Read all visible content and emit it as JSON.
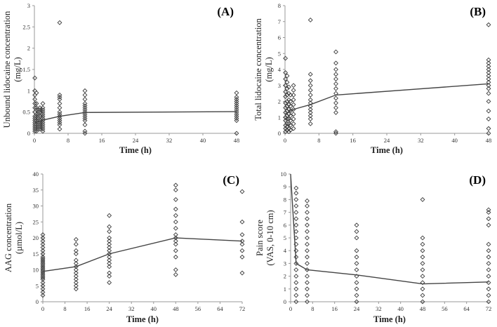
{
  "chart_data": [
    {
      "id": "A",
      "type": "scatter",
      "panel_label": "(A)",
      "xlabel": "Time (h)",
      "ylabel_lines": [
        "Unbound lidocaine concentration",
        "(mg/L)"
      ],
      "xlim": [
        0,
        48
      ],
      "ylim": [
        0,
        3
      ],
      "xticks": [
        0,
        8,
        16,
        24,
        32,
        40,
        48
      ],
      "yticks": [
        0,
        0.5,
        1,
        1.5,
        2,
        2.5,
        3
      ],
      "ytick_labels": [
        "0",
        "0.5",
        "1",
        "1.5",
        "2",
        "2.5",
        "3"
      ],
      "scatter_columns": [
        {
          "x": 0.1,
          "y": [
            0.05,
            0.1,
            0.15,
            0.2,
            0.25,
            0.3,
            0.35,
            0.4,
            0.5,
            0.6,
            0.7,
            0.8,
            0.9,
            1.0,
            1.3
          ]
        },
        {
          "x": 0.5,
          "y": [
            0.05,
            0.1,
            0.15,
            0.2,
            0.3,
            0.4,
            0.45,
            0.55,
            0.6,
            0.7,
            0.95
          ]
        },
        {
          "x": 0.9,
          "y": [
            0.1,
            0.15,
            0.2,
            0.25,
            0.3,
            0.35,
            0.4,
            0.45,
            0.5,
            0.55
          ]
        },
        {
          "x": 1.3,
          "y": [
            0.1,
            0.15,
            0.2,
            0.25,
            0.3,
            0.4,
            0.5,
            0.55,
            0.6
          ]
        },
        {
          "x": 2,
          "y": [
            0.05,
            0.1,
            0.15,
            0.2,
            0.25,
            0.3,
            0.35,
            0.4,
            0.45,
            0.5,
            0.55,
            0.6,
            0.7
          ]
        },
        {
          "x": 6,
          "y": [
            0.1,
            0.2,
            0.25,
            0.3,
            0.35,
            0.4,
            0.45,
            0.5,
            0.6,
            0.7,
            0.8,
            0.85,
            0.9,
            2.6
          ]
        },
        {
          "x": 12,
          "y": [
            0.0,
            0.05,
            0.2,
            0.3,
            0.35,
            0.4,
            0.45,
            0.5,
            0.55,
            0.6,
            0.65,
            0.7,
            0.8,
            0.9,
            1.0
          ]
        },
        {
          "x": 48,
          "y": [
            0.0,
            0.3,
            0.35,
            0.4,
            0.45,
            0.5,
            0.55,
            0.6,
            0.65,
            0.7,
            0.75,
            0.8,
            0.85,
            0.95
          ]
        }
      ],
      "line": {
        "x": [
          0,
          2,
          6,
          12,
          48
        ],
        "y": [
          0.25,
          0.31,
          0.4,
          0.49,
          0.51
        ]
      }
    },
    {
      "id": "B",
      "type": "scatter",
      "panel_label": "(B)",
      "xlabel": "Time (h)",
      "ylabel_lines": [
        "Total lidocaine concentration",
        "(mg/L)"
      ],
      "xlim": [
        0,
        48
      ],
      "ylim": [
        0,
        8
      ],
      "xticks": [
        0,
        8,
        16,
        24,
        32,
        40,
        48
      ],
      "yticks": [
        0,
        1,
        2,
        3,
        4,
        5,
        6,
        7,
        8
      ],
      "ytick_labels": [
        "0",
        "1",
        "2",
        "3",
        "4",
        "5",
        "6",
        "7",
        "8"
      ],
      "scatter_columns": [
        {
          "x": 0.1,
          "y": [
            0.1,
            0.3,
            0.5,
            0.8,
            1.0,
            1.3,
            1.6,
            1.9,
            2.3,
            2.6,
            3.0,
            3.4,
            3.8,
            4.7
          ]
        },
        {
          "x": 0.5,
          "y": [
            0.2,
            0.4,
            0.6,
            0.9,
            1.1,
            1.4,
            1.7,
            2.0,
            2.4,
            2.8,
            3.2,
            3.6
          ]
        },
        {
          "x": 0.9,
          "y": [
            0.1,
            0.3,
            0.6,
            0.9,
            1.2,
            1.5,
            1.8,
            2.1,
            2.5,
            2.9
          ]
        },
        {
          "x": 1.3,
          "y": [
            0.2,
            0.5,
            0.8,
            1.1,
            1.4,
            1.7,
            2.0,
            2.4
          ]
        },
        {
          "x": 2,
          "y": [
            0.3,
            0.6,
            0.9,
            1.2,
            1.5,
            1.8,
            2.1,
            2.4,
            2.7,
            3.0
          ]
        },
        {
          "x": 6,
          "y": [
            0.6,
            0.9,
            1.1,
            1.3,
            1.5,
            1.7,
            1.9,
            2.1,
            2.4,
            2.7,
            3.0,
            3.3,
            3.7,
            7.1
          ]
        },
        {
          "x": 12,
          "y": [
            0.0,
            0.1,
            1.3,
            1.6,
            1.9,
            2.2,
            2.5,
            2.8,
            3.1,
            3.4,
            3.7,
            4.0,
            4.4,
            5.1
          ]
        },
        {
          "x": 48,
          "y": [
            0.0,
            0.3,
            0.9,
            1.4,
            2.0,
            2.5,
            2.8,
            3.0,
            3.2,
            3.4,
            3.6,
            3.8,
            4.0,
            4.2,
            4.4,
            4.6,
            6.8
          ]
        }
      ],
      "line": {
        "x": [
          0,
          2,
          6,
          12,
          48
        ],
        "y": [
          1.2,
          1.5,
          1.8,
          2.4,
          3.1
        ]
      }
    },
    {
      "id": "C",
      "type": "scatter",
      "panel_label": "(C)",
      "xlabel": "Time (h)",
      "ylabel_lines": [
        "AAG concentration",
        "(µmol/L)"
      ],
      "xlim": [
        0,
        72
      ],
      "ylim": [
        0,
        40
      ],
      "xticks": [
        0,
        8,
        16,
        24,
        32,
        40,
        48,
        56,
        64,
        72
      ],
      "yticks": [
        0,
        5,
        10,
        15,
        20,
        25,
        30,
        35,
        40
      ],
      "ytick_labels": [
        "0",
        "5",
        "10",
        "15",
        "20",
        "25",
        "30",
        "35",
        "40"
      ],
      "scatter_columns": [
        {
          "x": 0,
          "y": [
            2,
            3,
            4,
            5,
            6,
            7,
            7.5,
            8,
            8.5,
            9,
            9.5,
            10,
            10.5,
            11,
            11.5,
            12,
            12.5,
            13,
            13.5,
            14,
            15,
            16,
            17,
            18,
            19,
            20,
            21
          ]
        },
        {
          "x": 12,
          "y": [
            4,
            5,
            6,
            7,
            8,
            9,
            10,
            11,
            12,
            13,
            15,
            16,
            18,
            19.5
          ]
        },
        {
          "x": 24,
          "y": [
            6,
            8,
            9,
            11,
            12,
            13,
            14,
            15,
            16,
            17,
            18,
            19,
            20,
            22,
            23.5,
            27
          ]
        },
        {
          "x": 48,
          "y": [
            8.5,
            10,
            14,
            16,
            18,
            19,
            20,
            21,
            23,
            25,
            27,
            29,
            32,
            35,
            36.5
          ]
        },
        {
          "x": 72,
          "y": [
            9,
            14,
            16,
            18,
            19,
            21,
            25,
            34.5
          ]
        }
      ],
      "line": {
        "x": [
          0,
          12,
          24,
          48,
          72
        ],
        "y": [
          9.5,
          11,
          15,
          20,
          19
        ]
      }
    },
    {
      "id": "D",
      "type": "scatter",
      "panel_label": "(D)",
      "xlabel": "Time (h)",
      "ylabel_lines": [
        "Pain score",
        "(VAS, 0-10 cm)"
      ],
      "xlim": [
        0,
        72
      ],
      "ylim": [
        0,
        10
      ],
      "xticks": [
        0,
        8,
        16,
        24,
        32,
        40,
        48,
        56,
        64,
        72
      ],
      "yticks": [
        0,
        1,
        2,
        3,
        4,
        5,
        6,
        7,
        8,
        9,
        10
      ],
      "ytick_labels": [
        "0",
        "1",
        "2",
        "3",
        "4",
        "5",
        "6",
        "7",
        "8",
        "9",
        "10"
      ],
      "scatter_columns": [
        {
          "x": 2,
          "y": [
            0,
            0.5,
            1,
            1.5,
            2,
            2.5,
            3,
            3.5,
            4,
            4.5,
            5,
            5.5,
            6,
            6.5,
            7,
            7.5,
            8,
            8.5,
            8.9
          ]
        },
        {
          "x": 6,
          "y": [
            0,
            0.5,
            1,
            1.5,
            2,
            2.5,
            3,
            3.5,
            4,
            4.5,
            5,
            5.5,
            6,
            6.5,
            7,
            7.5,
            7.9
          ]
        },
        {
          "x": 24,
          "y": [
            0,
            0.5,
            1,
            1.5,
            2,
            2.5,
            3,
            3.5,
            4,
            5,
            5.5,
            6
          ]
        },
        {
          "x": 48,
          "y": [
            0,
            0.5,
            1,
            1.5,
            2,
            2.5,
            3,
            3.5,
            4,
            4.5,
            5,
            8
          ]
        },
        {
          "x": 72,
          "y": [
            0,
            0.5,
            1,
            1.5,
            2,
            2.5,
            3,
            3.5,
            4,
            4.5,
            6,
            6.5,
            7,
            7.2
          ]
        }
      ],
      "line": {
        "x": [
          0,
          1,
          2,
          6,
          24,
          48,
          72
        ],
        "y": [
          10,
          6.5,
          3,
          2.5,
          2.1,
          1.4,
          1.55
        ]
      }
    }
  ]
}
